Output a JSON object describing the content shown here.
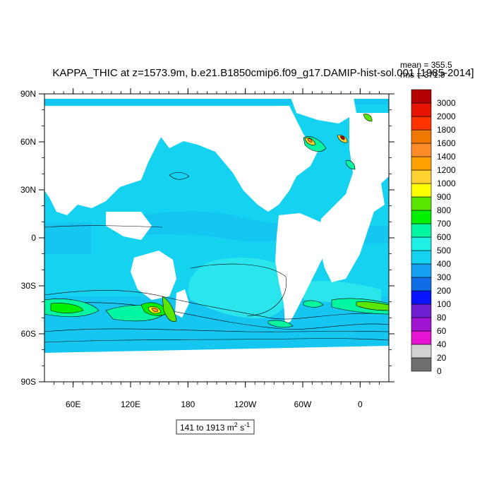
{
  "title": "KAPPA_THIC at z=1573.9m, b.e21.B1850cmip6.f09_g17.DAMIP-hist-sol.001 [1985-2014]",
  "stats": {
    "mean": "mean = 355.5",
    "rms": "rms = 371.9"
  },
  "range_label": {
    "text": "141 to 1913 m",
    "sup1": "2",
    "mid": " s",
    "sup2": "-1"
  },
  "map_data": {
    "type": "filled-contour-map",
    "projection": "cylindrical-equidistant",
    "lon_range": [
      30,
      390
    ],
    "lat_range": [
      -90,
      90
    ],
    "lat_ticks": [
      {
        "value": 90,
        "label": "90N"
      },
      {
        "value": 60,
        "label": "60N"
      },
      {
        "value": 30,
        "label": "30N"
      },
      {
        "value": 0,
        "label": "0"
      },
      {
        "value": -30,
        "label": "30S"
      },
      {
        "value": -60,
        "label": "60S"
      },
      {
        "value": -90,
        "label": "90S"
      }
    ],
    "lon_ticks": [
      {
        "value": 60,
        "label": "60E"
      },
      {
        "value": 120,
        "label": "120E"
      },
      {
        "value": 180,
        "label": "180"
      },
      {
        "value": 240,
        "label": "120W"
      },
      {
        "value": 300,
        "label": "60W"
      },
      {
        "value": 360,
        "label": "0"
      }
    ]
  },
  "colorbar": {
    "levels": [
      "0",
      "20",
      "40",
      "60",
      "80",
      "100",
      "200",
      "300",
      "400",
      "500",
      "600",
      "700",
      "800",
      "900",
      "1000",
      "1200",
      "1400",
      "1600",
      "1800",
      "2000",
      "3000"
    ],
    "colors": [
      "#6e6e6e",
      "#d2d2d2",
      "#e614d2",
      "#a014d2",
      "#6e1ed2",
      "#0a14ff",
      "#0f6ee6",
      "#14a0f0",
      "#14d2f0",
      "#1ef0e6",
      "#00f6a0",
      "#00f000",
      "#5ae600",
      "#ffff00",
      "#ffd232",
      "#ffa000",
      "#ff8c28",
      "#f07800",
      "#ff3200",
      "#e61400",
      "#b40000"
    ]
  }
}
